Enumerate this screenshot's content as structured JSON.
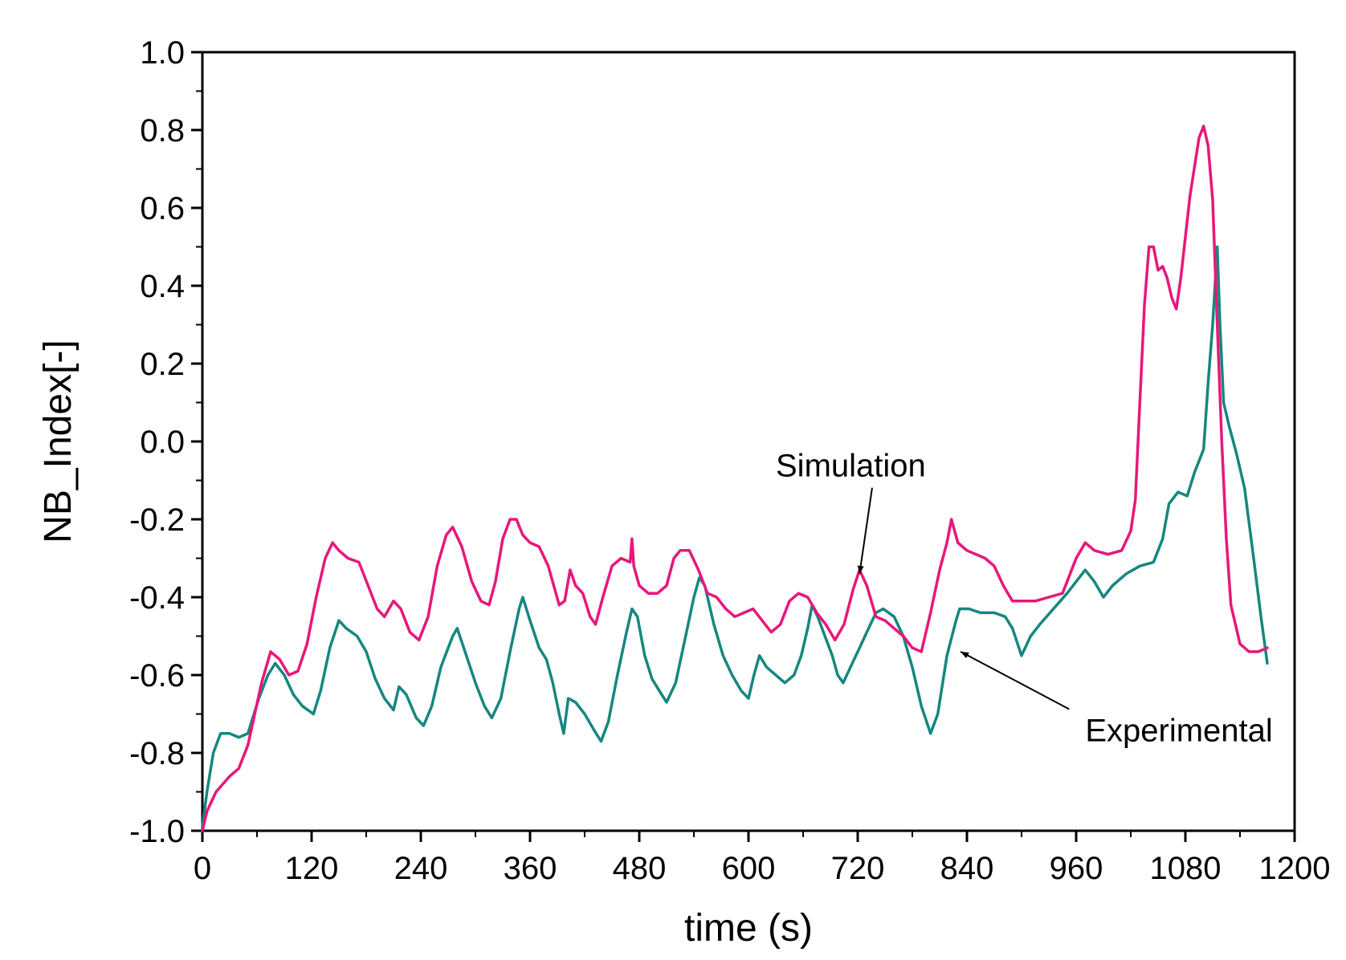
{
  "chart_data": {
    "type": "line",
    "title": "",
    "xlabel": "time (s)",
    "ylabel": "NB_Index[-]",
    "xlim": [
      0,
      1200
    ],
    "ylim": [
      -1.0,
      1.0
    ],
    "x_ticks": [
      0,
      120,
      240,
      360,
      480,
      600,
      720,
      840,
      960,
      1080,
      1200
    ],
    "x_tick_labels": [
      "0",
      "120",
      "240",
      "360",
      "480",
      "600",
      "720",
      "840",
      "960",
      "1080",
      "1200"
    ],
    "y_ticks": [
      1.0,
      0.8,
      0.6,
      0.4,
      0.2,
      0.0,
      -0.2,
      -0.4,
      -0.6,
      -0.8,
      -1.0
    ],
    "y_tick_labels": [
      "1.0",
      "0.8",
      "0.6",
      "0.4",
      "0.2",
      "0.0",
      "-0.2",
      "-0.4",
      "-0.6",
      "-0.8",
      "-1.0"
    ],
    "grid": false,
    "series": [
      {
        "name": "Simulation",
        "color": "#e8177a",
        "points": [
          [
            0,
            -1.0
          ],
          [
            5,
            -0.95
          ],
          [
            15,
            -0.9
          ],
          [
            30,
            -0.86
          ],
          [
            40,
            -0.84
          ],
          [
            50,
            -0.78
          ],
          [
            65,
            -0.62
          ],
          [
            75,
            -0.54
          ],
          [
            85,
            -0.56
          ],
          [
            95,
            -0.6
          ],
          [
            105,
            -0.59
          ],
          [
            115,
            -0.52
          ],
          [
            125,
            -0.4
          ],
          [
            135,
            -0.3
          ],
          [
            143,
            -0.26
          ],
          [
            150,
            -0.28
          ],
          [
            160,
            -0.3
          ],
          [
            172,
            -0.31
          ],
          [
            182,
            -0.37
          ],
          [
            192,
            -0.43
          ],
          [
            200,
            -0.45
          ],
          [
            210,
            -0.41
          ],
          [
            218,
            -0.43
          ],
          [
            228,
            -0.49
          ],
          [
            238,
            -0.51
          ],
          [
            248,
            -0.45
          ],
          [
            258,
            -0.32
          ],
          [
            268,
            -0.24
          ],
          [
            275,
            -0.22
          ],
          [
            285,
            -0.27
          ],
          [
            296,
            -0.36
          ],
          [
            306,
            -0.41
          ],
          [
            315,
            -0.42
          ],
          [
            322,
            -0.36
          ],
          [
            330,
            -0.25
          ],
          [
            338,
            -0.2
          ],
          [
            345,
            -0.2
          ],
          [
            352,
            -0.24
          ],
          [
            360,
            -0.26
          ],
          [
            370,
            -0.27
          ],
          [
            380,
            -0.32
          ],
          [
            386,
            -0.37
          ],
          [
            392,
            -0.42
          ],
          [
            398,
            -0.41
          ],
          [
            404,
            -0.33
          ],
          [
            410,
            -0.37
          ],
          [
            418,
            -0.39
          ],
          [
            426,
            -0.45
          ],
          [
            432,
            -0.47
          ],
          [
            440,
            -0.4
          ],
          [
            450,
            -0.32
          ],
          [
            460,
            -0.3
          ],
          [
            470,
            -0.31
          ],
          [
            472,
            -0.25
          ],
          [
            474,
            -0.32
          ],
          [
            480,
            -0.37
          ],
          [
            490,
            -0.39
          ],
          [
            500,
            -0.39
          ],
          [
            510,
            -0.37
          ],
          [
            518,
            -0.3
          ],
          [
            525,
            -0.28
          ],
          [
            535,
            -0.28
          ],
          [
            545,
            -0.33
          ],
          [
            555,
            -0.39
          ],
          [
            565,
            -0.4
          ],
          [
            575,
            -0.43
          ],
          [
            585,
            -0.45
          ],
          [
            595,
            -0.44
          ],
          [
            605,
            -0.43
          ],
          [
            615,
            -0.46
          ],
          [
            625,
            -0.49
          ],
          [
            635,
            -0.47
          ],
          [
            645,
            -0.41
          ],
          [
            655,
            -0.39
          ],
          [
            665,
            -0.4
          ],
          [
            675,
            -0.44
          ],
          [
            685,
            -0.47
          ],
          [
            695,
            -0.51
          ],
          [
            705,
            -0.47
          ],
          [
            715,
            -0.38
          ],
          [
            722,
            -0.33
          ],
          [
            730,
            -0.37
          ],
          [
            740,
            -0.45
          ],
          [
            750,
            -0.46
          ],
          [
            760,
            -0.48
          ],
          [
            770,
            -0.5
          ],
          [
            780,
            -0.53
          ],
          [
            790,
            -0.54
          ],
          [
            800,
            -0.44
          ],
          [
            810,
            -0.33
          ],
          [
            818,
            -0.26
          ],
          [
            823,
            -0.2
          ],
          [
            830,
            -0.26
          ],
          [
            840,
            -0.28
          ],
          [
            850,
            -0.29
          ],
          [
            860,
            -0.3
          ],
          [
            870,
            -0.32
          ],
          [
            880,
            -0.37
          ],
          [
            890,
            -0.41
          ],
          [
            900,
            -0.41
          ],
          [
            915,
            -0.41
          ],
          [
            930,
            -0.4
          ],
          [
            945,
            -0.39
          ],
          [
            960,
            -0.3
          ],
          [
            970,
            -0.26
          ],
          [
            980,
            -0.28
          ],
          [
            995,
            -0.29
          ],
          [
            1010,
            -0.28
          ],
          [
            1020,
            -0.23
          ],
          [
            1025,
            -0.15
          ],
          [
            1030,
            0.1
          ],
          [
            1035,
            0.35
          ],
          [
            1040,
            0.5
          ],
          [
            1045,
            0.5
          ],
          [
            1050,
            0.44
          ],
          [
            1055,
            0.45
          ],
          [
            1060,
            0.42
          ],
          [
            1065,
            0.37
          ],
          [
            1070,
            0.34
          ],
          [
            1075,
            0.42
          ],
          [
            1085,
            0.63
          ],
          [
            1095,
            0.78
          ],
          [
            1100,
            0.81
          ],
          [
            1105,
            0.76
          ],
          [
            1110,
            0.62
          ],
          [
            1115,
            0.3
          ],
          [
            1120,
            0.0
          ],
          [
            1125,
            -0.25
          ],
          [
            1130,
            -0.42
          ],
          [
            1140,
            -0.52
          ],
          [
            1150,
            -0.54
          ],
          [
            1160,
            -0.54
          ],
          [
            1170,
            -0.53
          ]
        ]
      },
      {
        "name": "Experimental",
        "color": "#16877f",
        "points": [
          [
            0,
            -0.99
          ],
          [
            5,
            -0.9
          ],
          [
            12,
            -0.8
          ],
          [
            20,
            -0.75
          ],
          [
            30,
            -0.75
          ],
          [
            40,
            -0.76
          ],
          [
            50,
            -0.75
          ],
          [
            62,
            -0.66
          ],
          [
            72,
            -0.6
          ],
          [
            80,
            -0.57
          ],
          [
            90,
            -0.6
          ],
          [
            100,
            -0.65
          ],
          [
            110,
            -0.68
          ],
          [
            122,
            -0.7
          ],
          [
            130,
            -0.64
          ],
          [
            140,
            -0.53
          ],
          [
            150,
            -0.46
          ],
          [
            158,
            -0.48
          ],
          [
            170,
            -0.5
          ],
          [
            180,
            -0.54
          ],
          [
            190,
            -0.61
          ],
          [
            200,
            -0.66
          ],
          [
            210,
            -0.69
          ],
          [
            216,
            -0.63
          ],
          [
            224,
            -0.65
          ],
          [
            235,
            -0.71
          ],
          [
            243,
            -0.73
          ],
          [
            252,
            -0.68
          ],
          [
            262,
            -0.58
          ],
          [
            275,
            -0.5
          ],
          [
            280,
            -0.48
          ],
          [
            290,
            -0.55
          ],
          [
            300,
            -0.62
          ],
          [
            310,
            -0.68
          ],
          [
            318,
            -0.71
          ],
          [
            328,
            -0.66
          ],
          [
            338,
            -0.54
          ],
          [
            348,
            -0.43
          ],
          [
            352,
            -0.4
          ],
          [
            360,
            -0.46
          ],
          [
            370,
            -0.53
          ],
          [
            378,
            -0.56
          ],
          [
            385,
            -0.62
          ],
          [
            392,
            -0.7
          ],
          [
            397,
            -0.75
          ],
          [
            402,
            -0.66
          ],
          [
            410,
            -0.67
          ],
          [
            420,
            -0.7
          ],
          [
            430,
            -0.74
          ],
          [
            438,
            -0.77
          ],
          [
            446,
            -0.72
          ],
          [
            456,
            -0.6
          ],
          [
            466,
            -0.49
          ],
          [
            472,
            -0.43
          ],
          [
            478,
            -0.45
          ],
          [
            486,
            -0.55
          ],
          [
            494,
            -0.61
          ],
          [
            502,
            -0.64
          ],
          [
            510,
            -0.67
          ],
          [
            520,
            -0.62
          ],
          [
            530,
            -0.51
          ],
          [
            540,
            -0.4
          ],
          [
            546,
            -0.35
          ],
          [
            552,
            -0.37
          ],
          [
            562,
            -0.47
          ],
          [
            572,
            -0.55
          ],
          [
            582,
            -0.6
          ],
          [
            592,
            -0.64
          ],
          [
            600,
            -0.66
          ],
          [
            606,
            -0.6
          ],
          [
            612,
            -0.55
          ],
          [
            620,
            -0.58
          ],
          [
            630,
            -0.6
          ],
          [
            640,
            -0.62
          ],
          [
            650,
            -0.6
          ],
          [
            658,
            -0.55
          ],
          [
            665,
            -0.48
          ],
          [
            670,
            -0.42
          ],
          [
            676,
            -0.45
          ],
          [
            684,
            -0.5
          ],
          [
            692,
            -0.55
          ],
          [
            698,
            -0.6
          ],
          [
            704,
            -0.62
          ],
          [
            712,
            -0.58
          ],
          [
            722,
            -0.53
          ],
          [
            732,
            -0.48
          ],
          [
            740,
            -0.44
          ],
          [
            748,
            -0.43
          ],
          [
            760,
            -0.45
          ],
          [
            770,
            -0.5
          ],
          [
            780,
            -0.58
          ],
          [
            790,
            -0.68
          ],
          [
            800,
            -0.75
          ],
          [
            808,
            -0.7
          ],
          [
            818,
            -0.55
          ],
          [
            828,
            -0.46
          ],
          [
            832,
            -0.43
          ],
          [
            842,
            -0.43
          ],
          [
            855,
            -0.44
          ],
          [
            870,
            -0.44
          ],
          [
            882,
            -0.45
          ],
          [
            890,
            -0.48
          ],
          [
            900,
            -0.55
          ],
          [
            910,
            -0.5
          ],
          [
            920,
            -0.47
          ],
          [
            935,
            -0.43
          ],
          [
            950,
            -0.39
          ],
          [
            960,
            -0.36
          ],
          [
            970,
            -0.33
          ],
          [
            980,
            -0.36
          ],
          [
            990,
            -0.4
          ],
          [
            1000,
            -0.37
          ],
          [
            1015,
            -0.34
          ],
          [
            1030,
            -0.32
          ],
          [
            1045,
            -0.31
          ],
          [
            1055,
            -0.25
          ],
          [
            1062,
            -0.16
          ],
          [
            1072,
            -0.13
          ],
          [
            1082,
            -0.14
          ],
          [
            1090,
            -0.08
          ],
          [
            1100,
            -0.02
          ],
          [
            1105,
            0.15
          ],
          [
            1110,
            0.3
          ],
          [
            1115,
            0.5
          ],
          [
            1118,
            0.3
          ],
          [
            1122,
            0.1
          ],
          [
            1128,
            0.04
          ],
          [
            1136,
            -0.03
          ],
          [
            1145,
            -0.12
          ],
          [
            1155,
            -0.3
          ],
          [
            1163,
            -0.45
          ],
          [
            1170,
            -0.57
          ]
        ]
      }
    ],
    "annotations": [
      {
        "text": "Simulation",
        "target_series": "Simulation",
        "target": [
          722,
          -0.34
        ],
        "text_anchor": [
          630,
          -0.09
        ]
      },
      {
        "text": "Experimental",
        "target_series": "Experimental",
        "target": [
          833,
          -0.54
        ],
        "text_anchor": [
          970,
          -0.77
        ]
      }
    ]
  }
}
